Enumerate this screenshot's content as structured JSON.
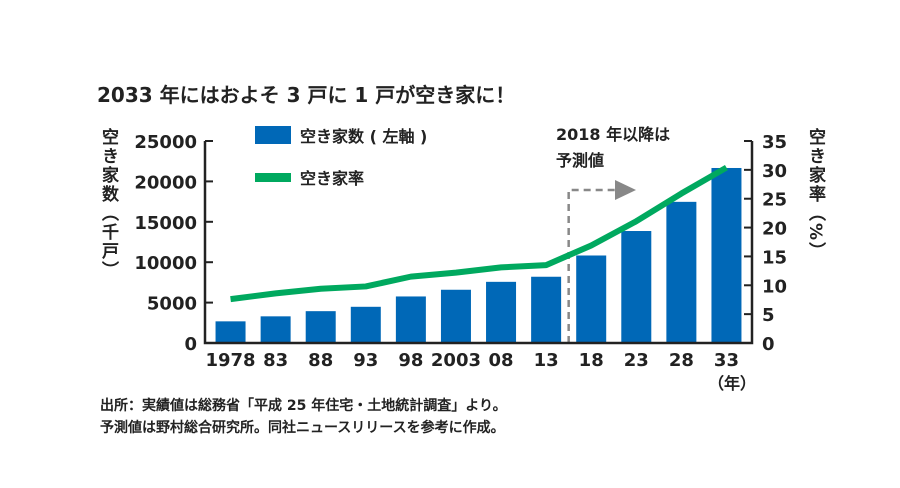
{
  "chart_data": {
    "type": "bar+line",
    "title": "2033 年にはおよそ 3 戸に 1 戸が空き家に！",
    "categories": [
      "1978",
      "83",
      "88",
      "93",
      "98",
      "2003",
      "08",
      "13",
      "18",
      "23",
      "28",
      "33"
    ],
    "x_unit": "（年）",
    "series": [
      {
        "name": "空き家数 ( 左軸 )",
        "type": "bar",
        "axis": "left",
        "color": "#0068b7",
        "values": [
          2680,
          3300,
          3940,
          4480,
          5760,
          6590,
          7570,
          8200,
          10830,
          13860,
          17470,
          21660
        ]
      },
      {
        "name": "空き家率",
        "type": "line",
        "axis": "right",
        "color": "#00a95f",
        "values": [
          7.6,
          8.6,
          9.4,
          9.8,
          11.5,
          12.2,
          13.1,
          13.5,
          16.9,
          21.1,
          25.9,
          30.4
        ]
      }
    ],
    "ylabel_left": "空き家数（千戸）",
    "ylabel_right": "空き家率（%）",
    "ylim_left": [
      0,
      25000
    ],
    "ylim_right": [
      0,
      35
    ],
    "yticks_left": [
      "0",
      "5000",
      "10000",
      "15000",
      "20000",
      "25000"
    ],
    "yticks_right": [
      "0",
      "5",
      "10",
      "15",
      "20",
      "25",
      "30",
      "35"
    ],
    "annotation": [
      "2018 年以降は",
      "予測値"
    ],
    "legend": "top-left",
    "grid": false
  },
  "source": [
    "出所：実績値は総務省「平成 25 年住宅・土地統計調査」より。",
    "予測値は野村総合研究所。同社ニュースリリースを参考に作成。"
  ]
}
